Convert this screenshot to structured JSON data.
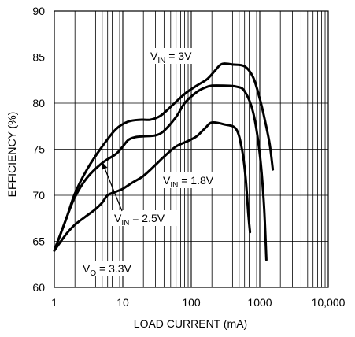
{
  "chart_data": {
    "type": "line",
    "xlabel": "LOAD CURRENT (mA)",
    "ylabel": "EFFICIENCY (%)",
    "x_scale": "log",
    "xlim": [
      1,
      10000
    ],
    "ylim": [
      60,
      90
    ],
    "x_ticks": [
      1,
      10,
      100,
      1000,
      10000
    ],
    "x_tick_labels": [
      "1",
      "10",
      "100",
      "1000",
      "10,000"
    ],
    "y_ticks": [
      60,
      65,
      70,
      75,
      80,
      85,
      90
    ],
    "y_tick_labels": [
      "60",
      "65",
      "70",
      "75",
      "80",
      "85",
      "90"
    ],
    "grid": true,
    "series": [
      {
        "name": "VIN = 3V",
        "x": [
          1,
          1.5,
          2,
          3,
          5,
          8,
          12,
          18,
          25,
          35,
          50,
          80,
          120,
          170,
          220,
          260,
          300,
          400,
          600,
          800,
          1000,
          1200,
          1400,
          1550
        ],
        "y": [
          64,
          67.5,
          70.2,
          72.8,
          75.3,
          77.2,
          78.0,
          78.2,
          78.2,
          78.6,
          79.6,
          81.0,
          81.9,
          82.6,
          83.5,
          84.1,
          84.3,
          84.2,
          84.0,
          82.8,
          80.5,
          78.0,
          75.5,
          72.8
        ]
      },
      {
        "name": "VIN = 2.5V",
        "x": [
          1,
          1.5,
          2,
          3,
          5,
          8,
          10,
          12,
          15,
          20,
          30,
          40,
          60,
          80,
          120,
          160,
          200,
          300,
          450,
          600,
          800,
          1000,
          1150,
          1250
        ],
        "y": [
          64,
          67.5,
          69.8,
          71.9,
          73.5,
          74.5,
          75.3,
          76.0,
          76.3,
          76.4,
          76.5,
          77.0,
          78.5,
          80.0,
          81.2,
          81.7,
          81.9,
          81.9,
          81.8,
          81.3,
          79.0,
          74.5,
          69.0,
          63.0
        ]
      },
      {
        "name": "VIN = 1.8V",
        "x": [
          1,
          1.5,
          2,
          3,
          4,
          5,
          6,
          8,
          10,
          14,
          20,
          30,
          40,
          60,
          90,
          120,
          160,
          200,
          300,
          450,
          550,
          620,
          680,
          720
        ],
        "y": [
          64,
          65.8,
          66.8,
          67.8,
          68.5,
          69.2,
          70.0,
          70.4,
          70.7,
          71.4,
          72.1,
          73.3,
          74.2,
          75.3,
          75.9,
          76.4,
          77.3,
          77.9,
          77.7,
          77.2,
          75.0,
          72.0,
          68.0,
          66.0
        ]
      }
    ],
    "annotations": [
      {
        "base": "V",
        "sub": "IN",
        "rest": " = 3V"
      },
      {
        "base": "V",
        "sub": "IN",
        "rest": " = 1.8V"
      },
      {
        "base": "V",
        "sub": "IN",
        "rest": " = 2.5V"
      },
      {
        "base": "V",
        "sub": "O",
        "rest": " = 3.3V"
      }
    ],
    "colors": {
      "line": "#000000",
      "grid": "#000000",
      "background": "#ffffff"
    }
  }
}
